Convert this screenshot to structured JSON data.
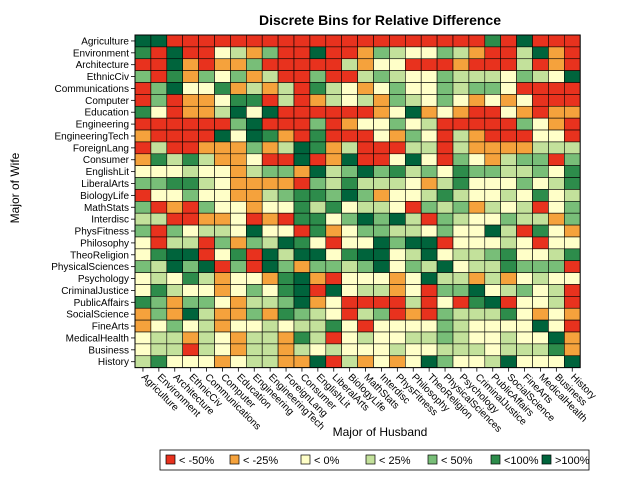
{
  "chart_data": {
    "type": "heatmap",
    "title": "Discrete Bins for Relative Difference",
    "xlabel": "Major of Husband",
    "ylabel": "Major of Wife",
    "grid": true,
    "legend_position": "bottom",
    "x_categories": [
      "Agriculture",
      "Environment",
      "Architecture",
      "EthnicCiv",
      "Communications",
      "Computer",
      "Education",
      "Engineering",
      "EngineeringTech",
      "ForeignLang",
      "Consumer",
      "EnglishLit",
      "LiberalArts",
      "BiologyLife",
      "MathStats",
      "Interdisc",
      "PhysFitness",
      "Philosophy",
      "TheoReligion",
      "PhysicalSciences",
      "Psychology",
      "CriminalJustice",
      "PublicAffairs",
      "SocialScience",
      "FineArts",
      "MedicalHealth",
      "Business",
      "History"
    ],
    "y_categories": [
      "Agriculture",
      "Environment",
      "Architecture",
      "EthnicCiv",
      "Communications",
      "Computer",
      "Education",
      "Engineering",
      "EngineeringTech",
      "ForeignLang",
      "Consumer",
      "EnglishLit",
      "LiberalArts",
      "BiologyLife",
      "MathStats",
      "Interdisc",
      "PhysFitness",
      "Philosophy",
      "TheoReligion",
      "PhysicalSciences",
      "Psychology",
      "CriminalJustice",
      "PublicAffairs",
      "SocialScience",
      "FineArts",
      "MedicalHealth",
      "Business",
      "History"
    ],
    "bins": [
      {
        "label": "< -50%",
        "color": "#e8321e"
      },
      {
        "label": "< -25%",
        "color": "#f5a23c"
      },
      {
        "label": "< 0%",
        "color": "#ffffc8"
      },
      {
        "label": "< 25%",
        "color": "#c3e19b"
      },
      {
        "label": "< 50%",
        "color": "#78be78"
      },
      {
        "label": "<100%",
        "color": "#2d8c4b"
      },
      {
        "label": ">100%",
        "color": "#00643c"
      }
    ],
    "values": [
      [
        6,
        6,
        0,
        0,
        0,
        0,
        0,
        0,
        0,
        0,
        0,
        0,
        0,
        0,
        0,
        0,
        0,
        0,
        0,
        0,
        0,
        0,
        5,
        0,
        6,
        0,
        0,
        0
      ],
      [
        5,
        0,
        6,
        0,
        0,
        2,
        3,
        1,
        4,
        0,
        0,
        6,
        0,
        0,
        1,
        4,
        3,
        2,
        2,
        4,
        3,
        1,
        0,
        0,
        3,
        6,
        1,
        0
      ],
      [
        0,
        0,
        6,
        1,
        0,
        1,
        1,
        4,
        0,
        0,
        0,
        0,
        0,
        3,
        1,
        2,
        2,
        0,
        0,
        0,
        1,
        0,
        0,
        0,
        3,
        0,
        1,
        0
      ],
      [
        4,
        0,
        5,
        1,
        4,
        2,
        4,
        1,
        3,
        0,
        0,
        4,
        0,
        0,
        3,
        4,
        3,
        2,
        2,
        4,
        3,
        3,
        3,
        2,
        4,
        3,
        2,
        6
      ],
      [
        0,
        4,
        6,
        2,
        2,
        5,
        1,
        3,
        1,
        3,
        0,
        5,
        3,
        2,
        1,
        2,
        4,
        2,
        2,
        4,
        3,
        4,
        4,
        2,
        0,
        0,
        0,
        0
      ],
      [
        0,
        4,
        0,
        1,
        1,
        2,
        5,
        5,
        0,
        3,
        0,
        1,
        3,
        2,
        3,
        1,
        4,
        3,
        2,
        4,
        2,
        1,
        2,
        1,
        2,
        0,
        0,
        0
      ],
      [
        5,
        2,
        0,
        1,
        1,
        3,
        6,
        2,
        6,
        0,
        0,
        0,
        0,
        0,
        0,
        1,
        2,
        6,
        1,
        2,
        1,
        0,
        0,
        2,
        1,
        0,
        1,
        1
      ],
      [
        0,
        0,
        0,
        0,
        0,
        0,
        4,
        6,
        0,
        0,
        0,
        4,
        0,
        1,
        2,
        2,
        4,
        2,
        3,
        0,
        0,
        0,
        0,
        0,
        4,
        2,
        1,
        0
      ],
      [
        1,
        0,
        0,
        0,
        0,
        6,
        2,
        6,
        5,
        1,
        0,
        5,
        0,
        0,
        0,
        2,
        1,
        4,
        2,
        0,
        3,
        1,
        0,
        0,
        0,
        2,
        2,
        0
      ],
      [
        0,
        3,
        0,
        0,
        1,
        1,
        1,
        4,
        1,
        3,
        6,
        5,
        1,
        3,
        0,
        0,
        0,
        3,
        3,
        0,
        3,
        1,
        1,
        1,
        1,
        3,
        3,
        3
      ],
      [
        1,
        5,
        3,
        5,
        3,
        1,
        1,
        2,
        0,
        0,
        6,
        0,
        1,
        6,
        0,
        0,
        2,
        6,
        2,
        0,
        4,
        2,
        1,
        3,
        4,
        4,
        0,
        4
      ],
      [
        2,
        2,
        2,
        3,
        2,
        2,
        1,
        3,
        4,
        4,
        1,
        6,
        3,
        4,
        6,
        4,
        5,
        3,
        4,
        2,
        5,
        4,
        4,
        3,
        3,
        4,
        2,
        5
      ],
      [
        4,
        4,
        5,
        5,
        3,
        2,
        1,
        1,
        1,
        1,
        0,
        4,
        3,
        5,
        3,
        3,
        3,
        2,
        1,
        3,
        5,
        2,
        2,
        2,
        4,
        2,
        3,
        5
      ],
      [
        0,
        2,
        2,
        4,
        2,
        2,
        1,
        1,
        3,
        4,
        5,
        5,
        4,
        6,
        4,
        1,
        2,
        2,
        3,
        5,
        3,
        2,
        2,
        3,
        2,
        5,
        2,
        3
      ],
      [
        4,
        0,
        1,
        0,
        4,
        2,
        2,
        1,
        2,
        2,
        5,
        3,
        5,
        2,
        3,
        3,
        2,
        0,
        4,
        3,
        4,
        1,
        3,
        2,
        3,
        0,
        2,
        4
      ],
      [
        3,
        3,
        0,
        0,
        1,
        1,
        2,
        0,
        1,
        0,
        5,
        5,
        2,
        4,
        6,
        4,
        6,
        3,
        0,
        4,
        3,
        2,
        2,
        4,
        3,
        3,
        1,
        4
      ],
      [
        4,
        0,
        4,
        2,
        3,
        3,
        2,
        6,
        2,
        2,
        0,
        5,
        1,
        2,
        4,
        4,
        3,
        3,
        2,
        4,
        2,
        2,
        6,
        3,
        0,
        5,
        2,
        1
      ],
      [
        2,
        0,
        3,
        3,
        0,
        4,
        1,
        4,
        3,
        6,
        5,
        2,
        0,
        2,
        2,
        6,
        4,
        6,
        6,
        0,
        2,
        2,
        2,
        3,
        2,
        0,
        2,
        2
      ],
      [
        2,
        5,
        6,
        6,
        0,
        2,
        5,
        0,
        6,
        3,
        6,
        6,
        2,
        5,
        6,
        6,
        2,
        3,
        6,
        2,
        3,
        3,
        4,
        5,
        2,
        2,
        3,
        5
      ],
      [
        4,
        3,
        6,
        4,
        6,
        0,
        4,
        0,
        6,
        4,
        1,
        4,
        4,
        3,
        4,
        6,
        2,
        4,
        3,
        6,
        2,
        3,
        3,
        5,
        4,
        4,
        4,
        0
      ],
      [
        2,
        3,
        2,
        5,
        3,
        1,
        2,
        2,
        1,
        5,
        6,
        1,
        0,
        2,
        2,
        2,
        1,
        2,
        6,
        3,
        3,
        1,
        3,
        1,
        2,
        3,
        2,
        2
      ],
      [
        2,
        5,
        3,
        2,
        2,
        1,
        2,
        4,
        2,
        5,
        6,
        0,
        6,
        2,
        3,
        3,
        1,
        2,
        0,
        4,
        4,
        6,
        2,
        3,
        4,
        2,
        3,
        0
      ],
      [
        5,
        4,
        1,
        4,
        4,
        2,
        1,
        3,
        3,
        4,
        6,
        1,
        2,
        0,
        0,
        0,
        0,
        3,
        0,
        2,
        0,
        5,
        6,
        0,
        2,
        2,
        3,
        0
      ],
      [
        1,
        4,
        1,
        6,
        3,
        1,
        1,
        4,
        1,
        5,
        4,
        3,
        2,
        0,
        3,
        4,
        0,
        1,
        0,
        4,
        3,
        3,
        3,
        5,
        2,
        1,
        2,
        1
      ],
      [
        1,
        2,
        4,
        2,
        3,
        1,
        2,
        2,
        3,
        2,
        3,
        3,
        5,
        2,
        0,
        2,
        2,
        2,
        2,
        4,
        3,
        2,
        2,
        2,
        2,
        6,
        2,
        0
      ],
      [
        2,
        3,
        3,
        1,
        3,
        2,
        1,
        3,
        3,
        1,
        5,
        3,
        0,
        2,
        3,
        2,
        2,
        3,
        3,
        4,
        3,
        2,
        2,
        3,
        2,
        2,
        6,
        1
      ],
      [
        2,
        3,
        3,
        0,
        3,
        2,
        1,
        3,
        3,
        1,
        3,
        2,
        3,
        2,
        2,
        2,
        3,
        2,
        2,
        3,
        3,
        3,
        2,
        3,
        3,
        3,
        5,
        1
      ],
      [
        3,
        5,
        2,
        2,
        2,
        1,
        2,
        3,
        3,
        1,
        1,
        6,
        0,
        3,
        1,
        2,
        1,
        2,
        6,
        4,
        2,
        2,
        3,
        6,
        2,
        2,
        2,
        6
      ]
    ]
  }
}
